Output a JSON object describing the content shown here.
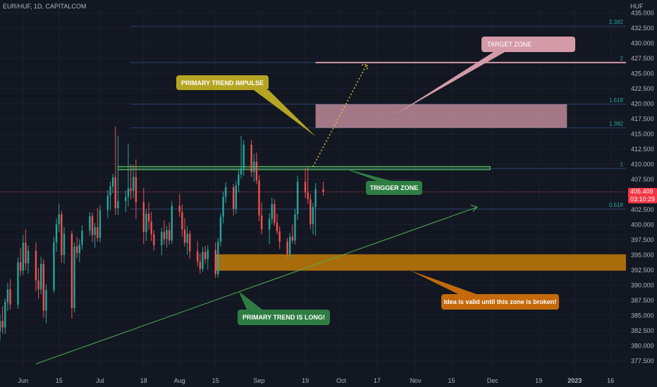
{
  "header": {
    "symbol": "EUR/HUF, 1D, CAPITALCOM",
    "currency": "HUF"
  },
  "price_axis": {
    "ticks": [
      "435.000",
      "432.500",
      "430.000",
      "427.500",
      "425.000",
      "422.500",
      "420.000",
      "417.500",
      "415.000",
      "412.500",
      "410.000",
      "407.500",
      "402.500",
      "400.000",
      "397.500",
      "395.000",
      "392.500",
      "390.000",
      "387.500",
      "385.000",
      "382.500",
      "380.000",
      "377.500"
    ],
    "current_price": "405.409",
    "countdown": "03:10:29"
  },
  "time_axis": {
    "labels": [
      "Jun",
      "15",
      "Jul",
      "18",
      "Aug",
      "15",
      "Sep",
      "19",
      "Oct",
      "17",
      "Nov",
      "15",
      "Dec",
      "19",
      "2023",
      "16"
    ]
  },
  "fib_levels": [
    {
      "label": "2.382",
      "price": 432.8
    },
    {
      "label": "2",
      "price": 426.8
    },
    {
      "label": "1.618",
      "price": 419.9
    },
    {
      "label": "1.382",
      "price": 416.0
    },
    {
      "label": "1",
      "price": 409.3
    },
    {
      "label": "0.618",
      "price": 402.6
    }
  ],
  "annotations": {
    "target_zone": "TARGET ZONE",
    "primary_trend_impulse": "PRIMARY TREND IMPULSE",
    "trigger_zone": "TRIGGER ZONE",
    "primary_trend_long": "PRIMARY TREND IS LONG!",
    "idea_valid": "Idea is valid until this zone is broken!"
  },
  "colors": {
    "up": "#26a69a",
    "down": "#ef5350",
    "background": "#131722",
    "trend": "#4caf50",
    "support_zone": "#c47b07",
    "target_zone": "#d49aa8",
    "trigger_zone": "#4caf50",
    "impulse": "#e0c038"
  },
  "chart_data": {
    "type": "candlestick",
    "title": "EUR/HUF, 1D, CAPITALCOM",
    "x_range": [
      "2022-05-23",
      "2023-01-22"
    ],
    "ylim": [
      375.5,
      435.5
    ],
    "series": [
      {
        "name": "EUR/HUF",
        "ohlc": [
          [
            "2022-05-23",
            382.4,
            385.2,
            380.8,
            384.1
          ],
          [
            "2022-05-24",
            384.1,
            386.5,
            382.0,
            383.0
          ],
          [
            "2022-05-25",
            383.0,
            387.8,
            381.9,
            387.2
          ],
          [
            "2022-05-26",
            387.2,
            390.4,
            385.7,
            389.3
          ],
          [
            "2022-05-27",
            389.3,
            391.0,
            386.0,
            386.8
          ],
          [
            "2022-05-30",
            386.8,
            394.6,
            386.1,
            393.8
          ],
          [
            "2022-05-31",
            393.8,
            396.2,
            391.5,
            392.4
          ],
          [
            "2022-06-01",
            392.4,
            398.3,
            391.7,
            397.0
          ],
          [
            "2022-06-02",
            397.0,
            399.2,
            392.5,
            393.6
          ],
          [
            "2022-06-03",
            393.6,
            396.6,
            391.9,
            395.7
          ],
          [
            "2022-06-06",
            395.7,
            397.1,
            389.0,
            390.8
          ],
          [
            "2022-06-07",
            390.8,
            392.9,
            387.8,
            389.3
          ],
          [
            "2022-06-08",
            389.3,
            394.7,
            388.5,
            393.5
          ],
          [
            "2022-06-09",
            393.5,
            394.3,
            384.6,
            385.8
          ],
          [
            "2022-06-10",
            385.8,
            390.1,
            383.7,
            389.2
          ],
          [
            "2022-06-13",
            389.2,
            398.0,
            388.7,
            397.1
          ],
          [
            "2022-06-14",
            397.1,
            401.0,
            395.5,
            400.1
          ],
          [
            "2022-06-15",
            400.1,
            403.5,
            398.8,
            401.7
          ],
          [
            "2022-06-16",
            401.7,
            402.3,
            393.7,
            395.0
          ],
          [
            "2022-06-17",
            395.0,
            399.6,
            393.6,
            398.5
          ],
          [
            "2022-06-20",
            398.5,
            399.0,
            384.5,
            386.2
          ],
          [
            "2022-06-21",
            386.2,
            397.1,
            385.5,
            396.4
          ],
          [
            "2022-06-22",
            396.4,
            398.0,
            394.4,
            395.3
          ],
          [
            "2022-06-23",
            395.3,
            397.6,
            393.8,
            396.7
          ],
          [
            "2022-06-24",
            396.7,
            399.9,
            395.9,
            399.0
          ],
          [
            "2022-06-27",
            399.0,
            402.1,
            398.1,
            401.4
          ],
          [
            "2022-06-28",
            401.4,
            402.0,
            397.1,
            398.3
          ],
          [
            "2022-06-29",
            398.3,
            400.3,
            396.2,
            399.6
          ],
          [
            "2022-06-30",
            399.6,
            402.8,
            397.2,
            397.8
          ],
          [
            "2022-07-01",
            397.8,
            403.2,
            397.1,
            402.4
          ],
          [
            "2022-07-04",
            402.4,
            405.7,
            401.1,
            404.8
          ],
          [
            "2022-07-05",
            404.8,
            407.1,
            402.4,
            406.3
          ],
          [
            "2022-07-06",
            406.3,
            408.4,
            405.2,
            407.8
          ],
          [
            "2022-07-07",
            407.8,
            416.2,
            401.6,
            402.7
          ],
          [
            "2022-07-08",
            402.7,
            414.7,
            401.6,
            403.9
          ],
          [
            "2022-07-11",
            403.9,
            405.7,
            402.1,
            404.6
          ],
          [
            "2022-07-12",
            404.6,
            413.4,
            403.0,
            406.0
          ],
          [
            "2022-07-13",
            406.0,
            410.0,
            404.2,
            405.6
          ],
          [
            "2022-07-14",
            405.6,
            409.9,
            404.4,
            407.9
          ],
          [
            "2022-07-15",
            407.9,
            410.8,
            400.9,
            403.7
          ],
          [
            "2022-07-18",
            403.7,
            406.1,
            396.8,
            398.8
          ],
          [
            "2022-07-19",
            398.8,
            402.5,
            397.3,
            401.8
          ],
          [
            "2022-07-20",
            401.8,
            403.7,
            399.2,
            400.5
          ],
          [
            "2022-07-21",
            400.5,
            402.1,
            397.3,
            398.4
          ],
          [
            "2022-07-22",
            398.4,
            399.1,
            395.7,
            396.6
          ],
          [
            "2022-07-25",
            396.6,
            399.5,
            395.0,
            398.8
          ],
          [
            "2022-07-26",
            398.8,
            400.7,
            396.7,
            397.6
          ],
          [
            "2022-07-27",
            397.6,
            399.8,
            396.2,
            399.1
          ],
          [
            "2022-07-28",
            399.1,
            400.4,
            396.7,
            397.4
          ],
          [
            "2022-07-29",
            397.4,
            403.9,
            396.9,
            403.1
          ],
          [
            "2022-08-01",
            403.1,
            405.1,
            401.3,
            402.1
          ],
          [
            "2022-08-02",
            402.1,
            403.3,
            398.0,
            399.2
          ],
          [
            "2022-08-03",
            399.2,
            401.1,
            396.4,
            397.0
          ],
          [
            "2022-08-04",
            397.0,
            399.8,
            395.0,
            398.5
          ],
          [
            "2022-08-05",
            398.5,
            399.0,
            394.4,
            395.6
          ],
          [
            "2022-08-08",
            395.6,
            397.3,
            393.1,
            393.9
          ],
          [
            "2022-08-09",
            393.9,
            395.2,
            391.9,
            392.7
          ],
          [
            "2022-08-10",
            392.7,
            396.3,
            392.2,
            395.5
          ],
          [
            "2022-08-11",
            395.5,
            396.5,
            393.6,
            394.3
          ],
          [
            "2022-08-12",
            394.3,
            396.6,
            392.6,
            395.8
          ],
          [
            "2022-08-15",
            395.8,
            397.1,
            391.2,
            391.8
          ],
          [
            "2022-08-16",
            391.8,
            397.8,
            391.3,
            397.2
          ],
          [
            "2022-08-17",
            397.2,
            401.9,
            396.4,
            401.3
          ],
          [
            "2022-08-18",
            401.3,
            405.5,
            400.2,
            404.6
          ],
          [
            "2022-08-19",
            404.6,
            407.0,
            403.6,
            406.2
          ],
          [
            "2022-08-22",
            406.2,
            406.7,
            401.5,
            402.6
          ],
          [
            "2022-08-23",
            402.6,
            407.2,
            401.8,
            406.5
          ],
          [
            "2022-08-24",
            406.5,
            409.1,
            405.4,
            408.3
          ],
          [
            "2022-08-25",
            408.3,
            414.7,
            407.6,
            409.3
          ],
          [
            "2022-08-26",
            409.3,
            414.0,
            408.0,
            413.2
          ],
          [
            "2022-08-29",
            413.2,
            414.0,
            407.9,
            408.7
          ],
          [
            "2022-08-30",
            408.7,
            411.7,
            407.1,
            410.4
          ],
          [
            "2022-08-31",
            410.4,
            411.9,
            406.7,
            407.3
          ],
          [
            "2022-09-01",
            407.3,
            408.2,
            400.6,
            401.5
          ],
          [
            "2022-09-02",
            401.5,
            403.7,
            398.4,
            399.2
          ],
          [
            "2022-09-05",
            399.2,
            401.9,
            396.8,
            401.0
          ],
          [
            "2022-09-06",
            401.0,
            404.5,
            400.1,
            403.4
          ],
          [
            "2022-09-07",
            403.4,
            404.2,
            399.8,
            400.3
          ],
          [
            "2022-09-08",
            400.3,
            401.8,
            398.4,
            398.9
          ],
          [
            "2022-09-09",
            398.9,
            399.7,
            396.0,
            397.2
          ],
          [
            "2022-09-12",
            397.2,
            397.8,
            394.3,
            395.1
          ],
          [
            "2022-09-13",
            395.1,
            398.6,
            394.4,
            398.0
          ],
          [
            "2022-09-14",
            398.0,
            400.0,
            396.9,
            397.4
          ],
          [
            "2022-09-15",
            397.4,
            402.6,
            396.7,
            401.7
          ],
          [
            "2022-09-16",
            401.7,
            408.1,
            400.8,
            407.1
          ],
          [
            "2022-09-19",
            407.1,
            409.3,
            404.4,
            405.3
          ],
          [
            "2022-09-20",
            405.3,
            409.6,
            403.4,
            404.2
          ],
          [
            "2022-09-21",
            404.2,
            405.1,
            399.2,
            400.1
          ],
          [
            "2022-09-22",
            400.1,
            403.6,
            398.4,
            402.9
          ],
          [
            "2022-09-23",
            402.9,
            406.9,
            398.2,
            405.9
          ],
          [
            "2022-09-26",
            405.9,
            407.1,
            404.8,
            405.4
          ]
        ]
      }
    ],
    "annotations": {
      "target_zone": {
        "from": "2022-09-23",
        "to": "2022-12-30",
        "price_low": 416.0,
        "price_high": 419.9
      },
      "trigger_zone": {
        "from": "2022-07-08",
        "to": "2022-11-30",
        "price_low": 409.1,
        "price_high": 409.6
      },
      "support_zone": {
        "from": "2022-08-15",
        "to": "2023-01-22",
        "price_low": 392.4,
        "price_high": 395.1
      },
      "trend_line": [
        [
          "2022-06-06",
          377.0
        ],
        [
          "2022-11-25",
          402.9
        ]
      ],
      "impulse_projection": [
        [
          "2022-09-22",
          409.6
        ],
        [
          "2022-10-13",
          426.5
        ]
      ]
    }
  }
}
